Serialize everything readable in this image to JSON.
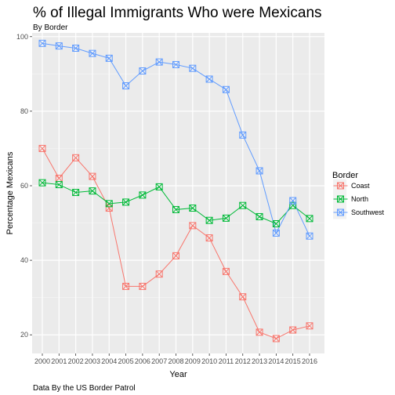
{
  "chart_data": {
    "type": "line",
    "title": "% of Illegal Immigrants Who were Mexicans",
    "subtitle": "By Border",
    "caption": "Data By the US Border Patrol",
    "xlabel": "Year",
    "ylabel": "Percentage Mexicans",
    "x": [
      "2000",
      "2001",
      "2002",
      "2003",
      "2004",
      "2005",
      "2006",
      "2007",
      "2008",
      "2009",
      "2010",
      "2011",
      "2012",
      "2013",
      "2014",
      "2015",
      "2016"
    ],
    "ylim": [
      15,
      101
    ],
    "yticks": [
      "20",
      "40",
      "60",
      "80",
      "100"
    ],
    "grid": true,
    "legend": {
      "title": "Border",
      "position": "right"
    },
    "series": [
      {
        "name": "Coast",
        "color": "#f8766d",
        "values": [
          70.0,
          62.0,
          67.5,
          62.5,
          54.0,
          33.0,
          33.0,
          36.3,
          41.2,
          49.3,
          46.0,
          37.0,
          30.2,
          20.7,
          19.0,
          21.3,
          22.4
        ]
      },
      {
        "name": "North",
        "color": "#00ba38",
        "values": [
          60.8,
          60.3,
          58.2,
          58.6,
          55.2,
          55.6,
          57.5,
          59.7,
          53.6,
          54.0,
          50.7,
          51.3,
          54.7,
          51.7,
          49.8,
          54.7,
          51.2
        ]
      },
      {
        "name": "Southwest",
        "color": "#619cff",
        "values": [
          98.2,
          97.5,
          96.9,
          95.5,
          94.2,
          86.8,
          90.8,
          93.2,
          92.5,
          91.5,
          88.6,
          85.8,
          73.6,
          64.0,
          47.3,
          56.0,
          46.5
        ]
      }
    ]
  }
}
